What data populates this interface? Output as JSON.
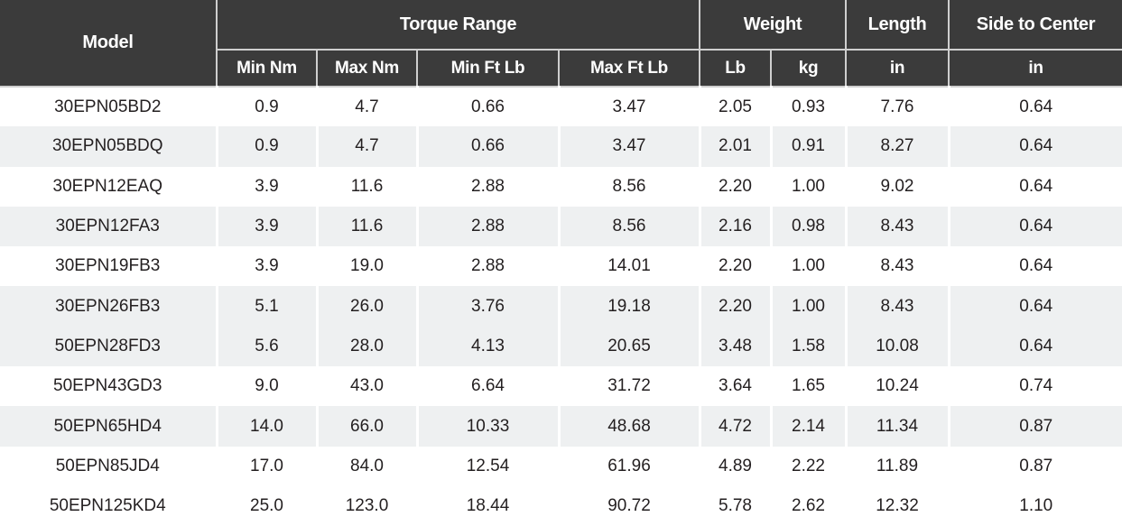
{
  "table": {
    "header": {
      "model": "Model",
      "torque_range": "Torque Range",
      "weight": "Weight",
      "length": "Length",
      "side_to_center": "Side to Center",
      "sub": {
        "min_nm": "Min Nm",
        "max_nm": "Max Nm",
        "min_ft_lb": "Min Ft Lb",
        "max_ft_lb": "Max Ft Lb",
        "lb": "Lb",
        "kg": "kg",
        "length_in": "in",
        "side_in": "in"
      }
    },
    "rows": [
      {
        "model": "30EPN05BD2",
        "min_nm": "0.9",
        "max_nm": "4.7",
        "min_ft_lb": "0.66",
        "max_ft_lb": "3.47",
        "lb": "2.05",
        "kg": "0.93",
        "length_in": "7.76",
        "side_to_center_in": "0.64",
        "shaded": false
      },
      {
        "model": "30EPN05BDQ",
        "min_nm": "0.9",
        "max_nm": "4.7",
        "min_ft_lb": "0.66",
        "max_ft_lb": "3.47",
        "lb": "2.01",
        "kg": "0.91",
        "length_in": "8.27",
        "side_to_center_in": "0.64",
        "shaded": true
      },
      {
        "model": "30EPN12EAQ",
        "min_nm": "3.9",
        "max_nm": "11.6",
        "min_ft_lb": "2.88",
        "max_ft_lb": "8.56",
        "lb": "2.20",
        "kg": "1.00",
        "length_in": "9.02",
        "side_to_center_in": "0.64",
        "shaded": false
      },
      {
        "model": "30EPN12FA3",
        "min_nm": "3.9",
        "max_nm": "11.6",
        "min_ft_lb": "2.88",
        "max_ft_lb": "8.56",
        "lb": "2.16",
        "kg": "0.98",
        "length_in": "8.43",
        "side_to_center_in": "0.64",
        "shaded": true
      },
      {
        "model": "30EPN19FB3",
        "min_nm": "3.9",
        "max_nm": "19.0",
        "min_ft_lb": "2.88",
        "max_ft_lb": "14.01",
        "lb": "2.20",
        "kg": "1.00",
        "length_in": "8.43",
        "side_to_center_in": "0.64",
        "shaded": false
      },
      {
        "model": "30EPN26FB3",
        "min_nm": "5.1",
        "max_nm": "26.0",
        "min_ft_lb": "3.76",
        "max_ft_lb": "19.18",
        "lb": "2.20",
        "kg": "1.00",
        "length_in": "8.43",
        "side_to_center_in": "0.64",
        "shaded": true
      },
      {
        "model": "50EPN28FD3",
        "min_nm": "5.6",
        "max_nm": "28.0",
        "min_ft_lb": "4.13",
        "max_ft_lb": "20.65",
        "lb": "3.48",
        "kg": "1.58",
        "length_in": "10.08",
        "side_to_center_in": "0.64",
        "shaded": true
      },
      {
        "model": "50EPN43GD3",
        "min_nm": "9.0",
        "max_nm": "43.0",
        "min_ft_lb": "6.64",
        "max_ft_lb": "31.72",
        "lb": "3.64",
        "kg": "1.65",
        "length_in": "10.24",
        "side_to_center_in": "0.74",
        "shaded": false
      },
      {
        "model": "50EPN65HD4",
        "min_nm": "14.0",
        "max_nm": "66.0",
        "min_ft_lb": "10.33",
        "max_ft_lb": "48.68",
        "lb": "4.72",
        "kg": "2.14",
        "length_in": "11.34",
        "side_to_center_in": "0.87",
        "shaded": true
      },
      {
        "model": "50EPN85JD4",
        "min_nm": "17.0",
        "max_nm": "84.0",
        "min_ft_lb": "12.54",
        "max_ft_lb": "61.96",
        "lb": "4.89",
        "kg": "2.22",
        "length_in": "11.89",
        "side_to_center_in": "0.87",
        "shaded": false
      },
      {
        "model": "50EPN125KD4",
        "min_nm": "25.0",
        "max_nm": "123.0",
        "min_ft_lb": "18.44",
        "max_ft_lb": "90.72",
        "lb": "5.78",
        "kg": "2.62",
        "length_in": "12.32",
        "side_to_center_in": "1.10",
        "shaded": false
      }
    ]
  },
  "colors": {
    "header_bg": "#3b3b3b",
    "header_text": "#ffffff",
    "header_divider": "#cfcfcf",
    "row_shaded": "#eef0f1",
    "row_plain": "#ffffff",
    "cell_text": "#231f20",
    "cell_divider": "#ffffff"
  }
}
